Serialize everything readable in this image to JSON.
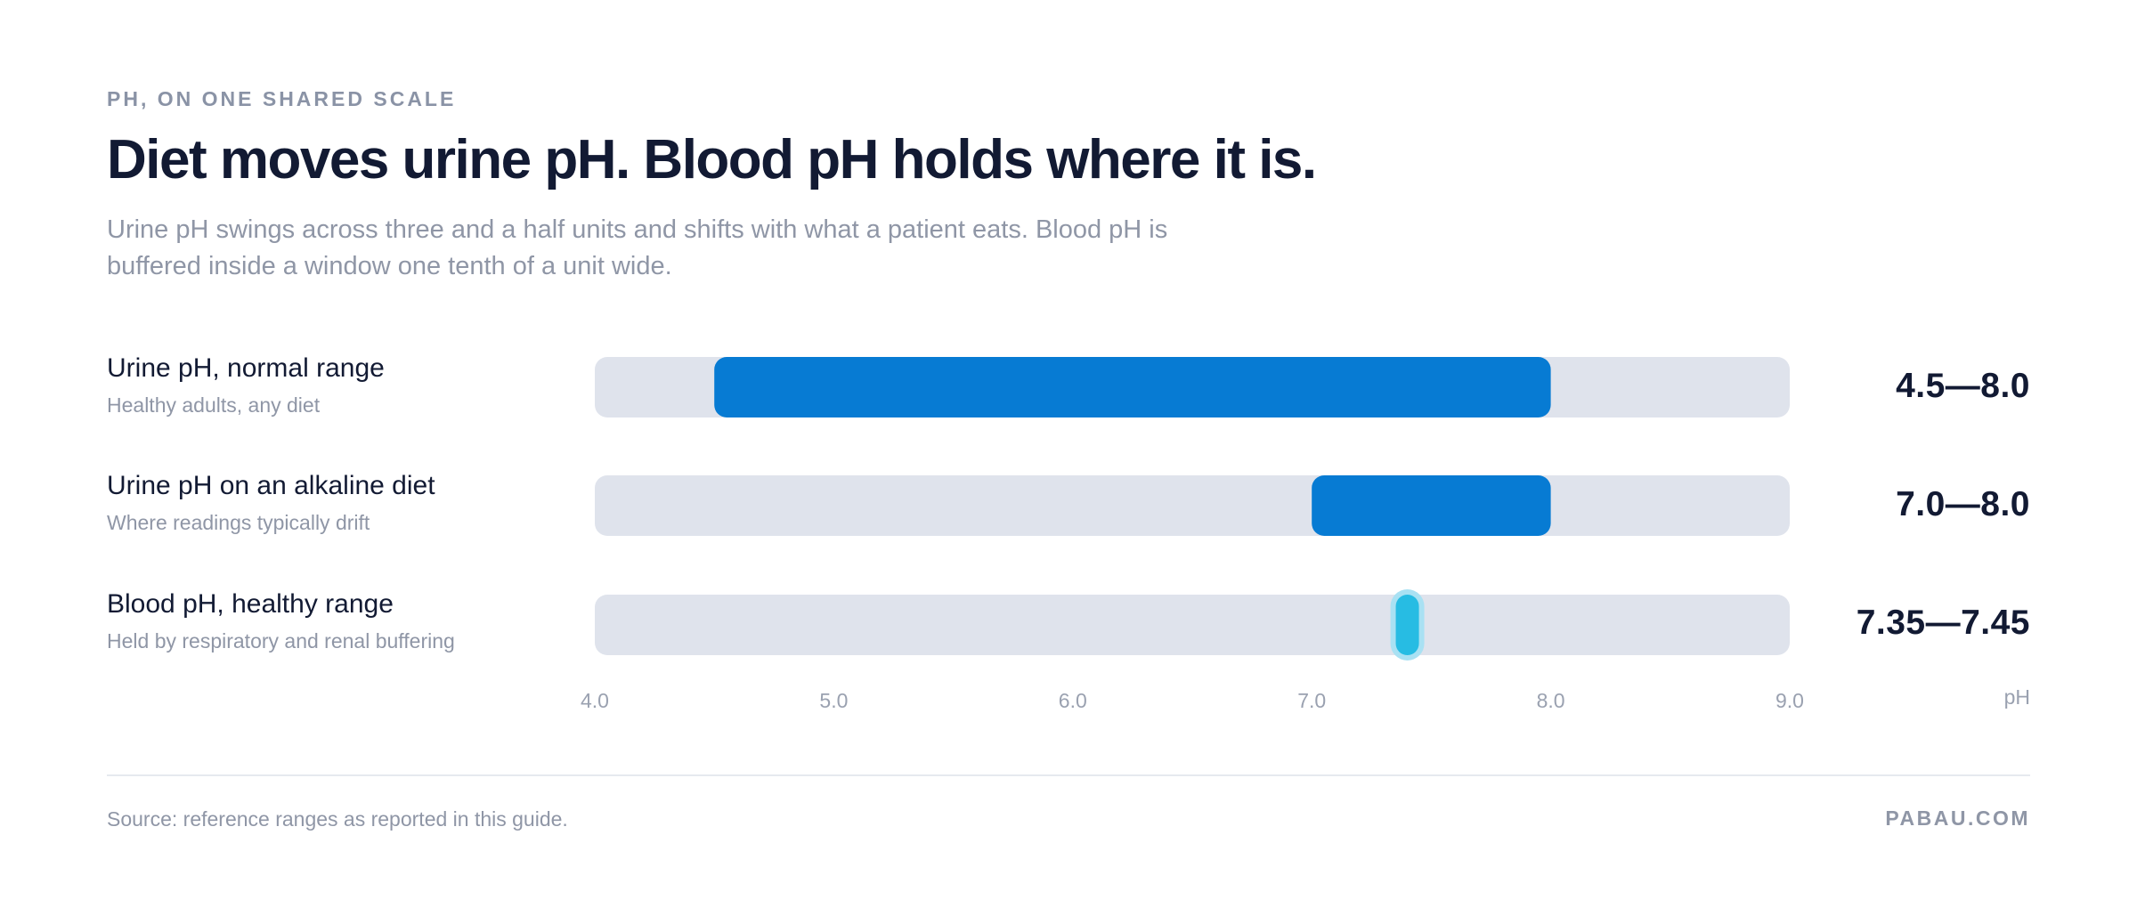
{
  "eyebrow": "PH, ON ONE SHARED SCALE",
  "title": "Diet moves urine pH. Blood pH holds where it is.",
  "subtitle": "Urine pH swings across three and a half units and shifts with what a patient eats. Blood pH is buffered inside a window one tenth of a unit wide.",
  "axis_unit": "pH",
  "source": "Source: reference ranges as reported in this guide.",
  "brand": "PABAU.COM",
  "colors": {
    "track": "#dfe3ec",
    "urine": "#077bd3",
    "blood": "#27bce3",
    "blood_halo": "#a9e1f3"
  },
  "chart_data": {
    "type": "bar",
    "orientation": "horizontal-range",
    "xlim": [
      4.0,
      9.0
    ],
    "xticks": [
      "4.0",
      "5.0",
      "6.0",
      "7.0",
      "8.0",
      "9.0"
    ],
    "xlabel": "pH",
    "rows": [
      {
        "label": "Urine pH, normal range",
        "sublabel": "Healthy adults, any diet",
        "low": 4.5,
        "high": 8.0,
        "value_label": "4.5—8.0",
        "color": "#077bd3"
      },
      {
        "label": "Urine pH on an alkaline diet",
        "sublabel": "Where readings typically drift",
        "low": 7.0,
        "high": 8.0,
        "value_label": "7.0—8.0",
        "color": "#077bd3"
      },
      {
        "label": "Blood pH, healthy range",
        "sublabel": "Held by respiratory and renal buffering",
        "low": 7.35,
        "high": 7.45,
        "value_label": "7.35—7.45",
        "color": "#27bce3"
      }
    ]
  }
}
